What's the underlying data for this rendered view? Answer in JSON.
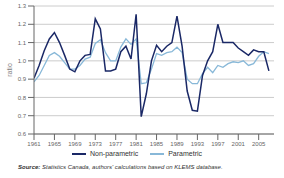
{
  "chart_data": {
    "type": "line",
    "title": "",
    "ylabel": "ratio",
    "annotations": [
      "Source:",
      "Statistics Canada, authors' calculations based on KLEMS database."
    ],
    "x": [
      1961,
      1962,
      1963,
      1964,
      1965,
      1966,
      1967,
      1968,
      1969,
      1970,
      1971,
      1972,
      1973,
      1974,
      1975,
      1976,
      1977,
      1978,
      1979,
      1980,
      1981,
      1982,
      1983,
      1984,
      1985,
      1986,
      1987,
      1988,
      1989,
      1990,
      1991,
      1992,
      1993,
      1994,
      1995,
      1996,
      1997,
      1998,
      1999,
      2000,
      2001,
      2002,
      2003,
      2004,
      2005,
      2006,
      2007
    ],
    "series": [
      {
        "name": "Non-parametric",
        "color": "#1a2866",
        "values": [
          0.905,
          0.975,
          1.055,
          1.12,
          1.155,
          1.1,
          1.03,
          0.955,
          0.94,
          1.0,
          1.03,
          1.035,
          1.23,
          1.175,
          0.945,
          0.945,
          0.955,
          1.05,
          1.08,
          1.01,
          1.255,
          0.695,
          0.82,
          1.0,
          1.085,
          1.05,
          1.08,
          1.1,
          1.245,
          1.08,
          0.835,
          0.73,
          0.725,
          0.92,
          1.0,
          1.05,
          1.2,
          1.1,
          1.1,
          1.1,
          1.07,
          1.05,
          1.03,
          1.06,
          1.05,
          1.05,
          0.945
        ]
      },
      {
        "name": "Parametric",
        "color": "#88b8d8",
        "values": [
          0.885,
          0.92,
          0.975,
          1.03,
          1.045,
          1.025,
          0.99,
          0.955,
          0.955,
          0.975,
          1.01,
          1.02,
          1.095,
          1.115,
          1.045,
          1.0,
          1.0,
          1.075,
          1.12,
          1.09,
          1.12,
          0.875,
          0.88,
          0.955,
          1.04,
          1.03,
          1.045,
          1.05,
          1.075,
          1.045,
          0.9,
          0.875,
          0.875,
          0.93,
          0.965,
          0.935,
          0.975,
          0.965,
          0.985,
          0.995,
          0.99,
          1.0,
          0.975,
          0.985,
          1.025,
          1.05,
          1.04
        ]
      }
    ],
    "xlim": [
      1961,
      2008
    ],
    "ylim": [
      0.6,
      1.3
    ],
    "xticks": [
      1961,
      1965,
      1969,
      1973,
      1977,
      1981,
      1985,
      1989,
      1993,
      1997,
      2001,
      2005
    ],
    "yticks": [
      0.6,
      0.7,
      0.8,
      0.9,
      {
        "value": 1.0,
        "label": "1.0"
      },
      1.1,
      1.2,
      1.3
    ],
    "grid": true
  }
}
